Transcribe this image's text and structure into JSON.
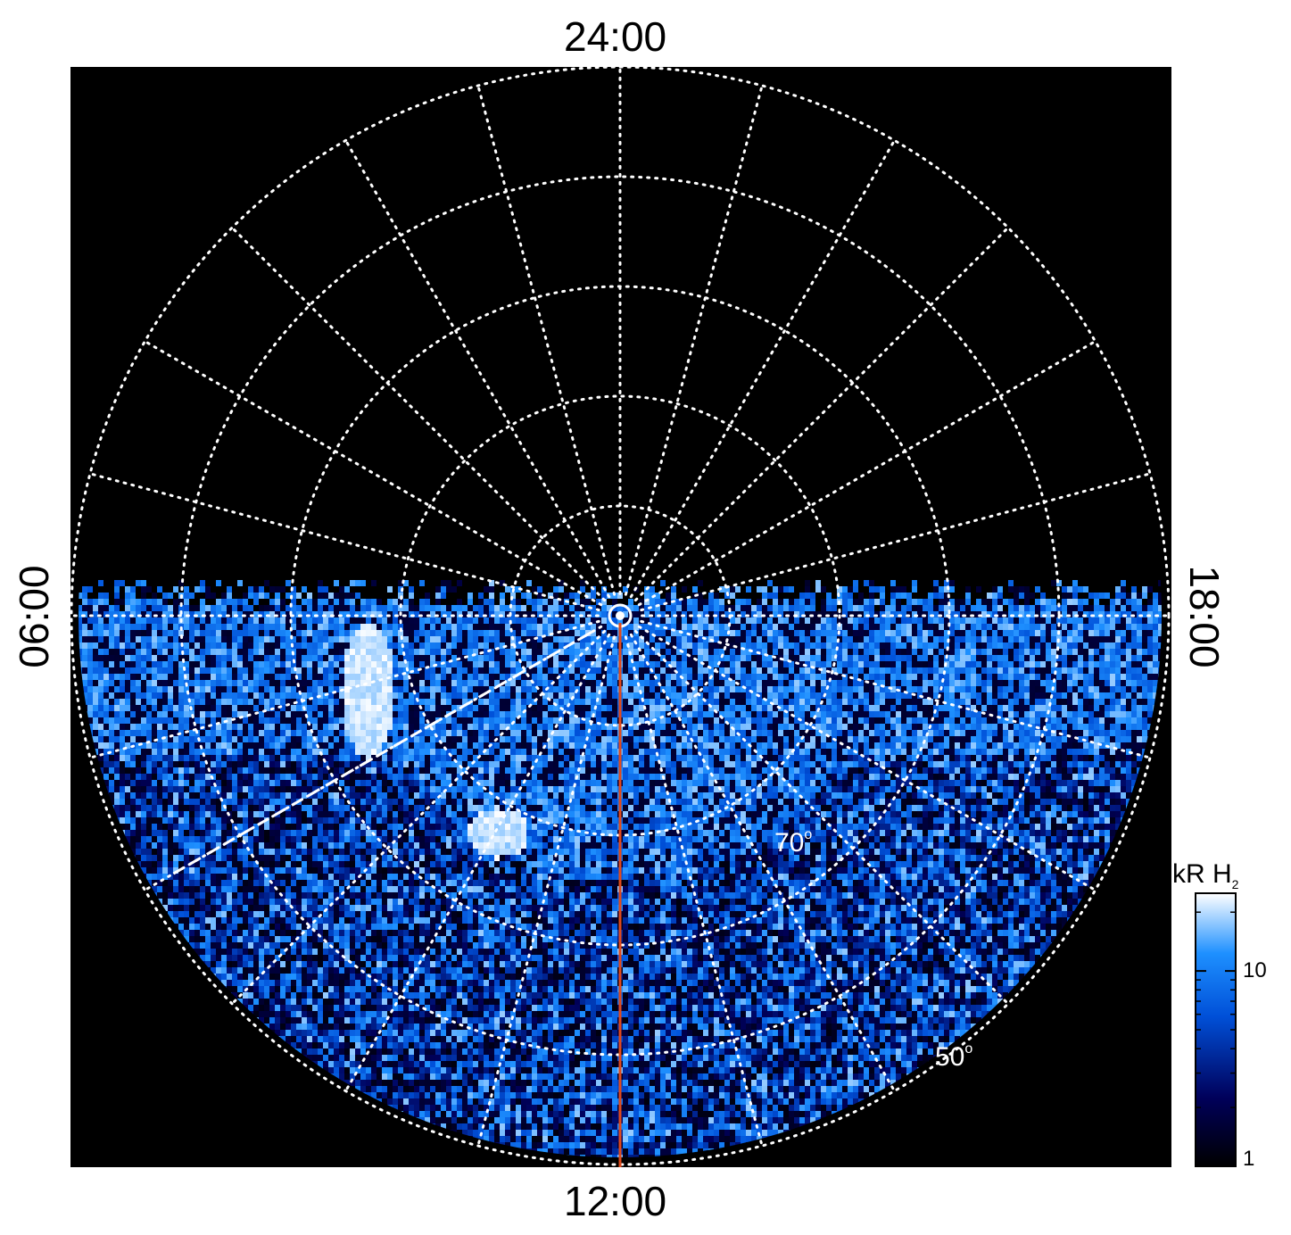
{
  "chart_data": {
    "type": "heatmap",
    "projection": "polar (north-up local time dial)",
    "local_time_labels": {
      "top": "24:00",
      "bottom": "12:00",
      "left": "06:00",
      "right": "18:00"
    },
    "latitude_labels": [
      {
        "text": "70",
        "degree": "o",
        "latitude": 70
      },
      {
        "text": "50",
        "degree": "o",
        "latitude": 50
      }
    ],
    "latitude_grid": [
      90,
      80,
      70,
      60,
      50,
      40
    ],
    "meridian_step_hours": 1,
    "colorbar": {
      "title": "kR H",
      "title_sub": "2",
      "scale": "log",
      "range": [
        1,
        25
      ],
      "ticks": [
        "10",
        "1"
      ],
      "colors": [
        "#000000",
        "#00005a",
        "#0050d8",
        "#1e90ff",
        "#ffffff"
      ]
    },
    "observed_region": "dayside hemisphere (06:00 through 12:00 to 18:00)",
    "bright_features": [
      {
        "description": "auroral arc at high latitude, dawn side",
        "intensity_kR": 25
      },
      {
        "description": "bright spot near 09:00 LT",
        "intensity_kR": 20
      }
    ],
    "overlays": {
      "meridian_line_color": "#e04a1c",
      "meridian_line_lt": "12:00",
      "dashed_line_color": "#ffffff",
      "grid_color": "#ffffff"
    }
  }
}
